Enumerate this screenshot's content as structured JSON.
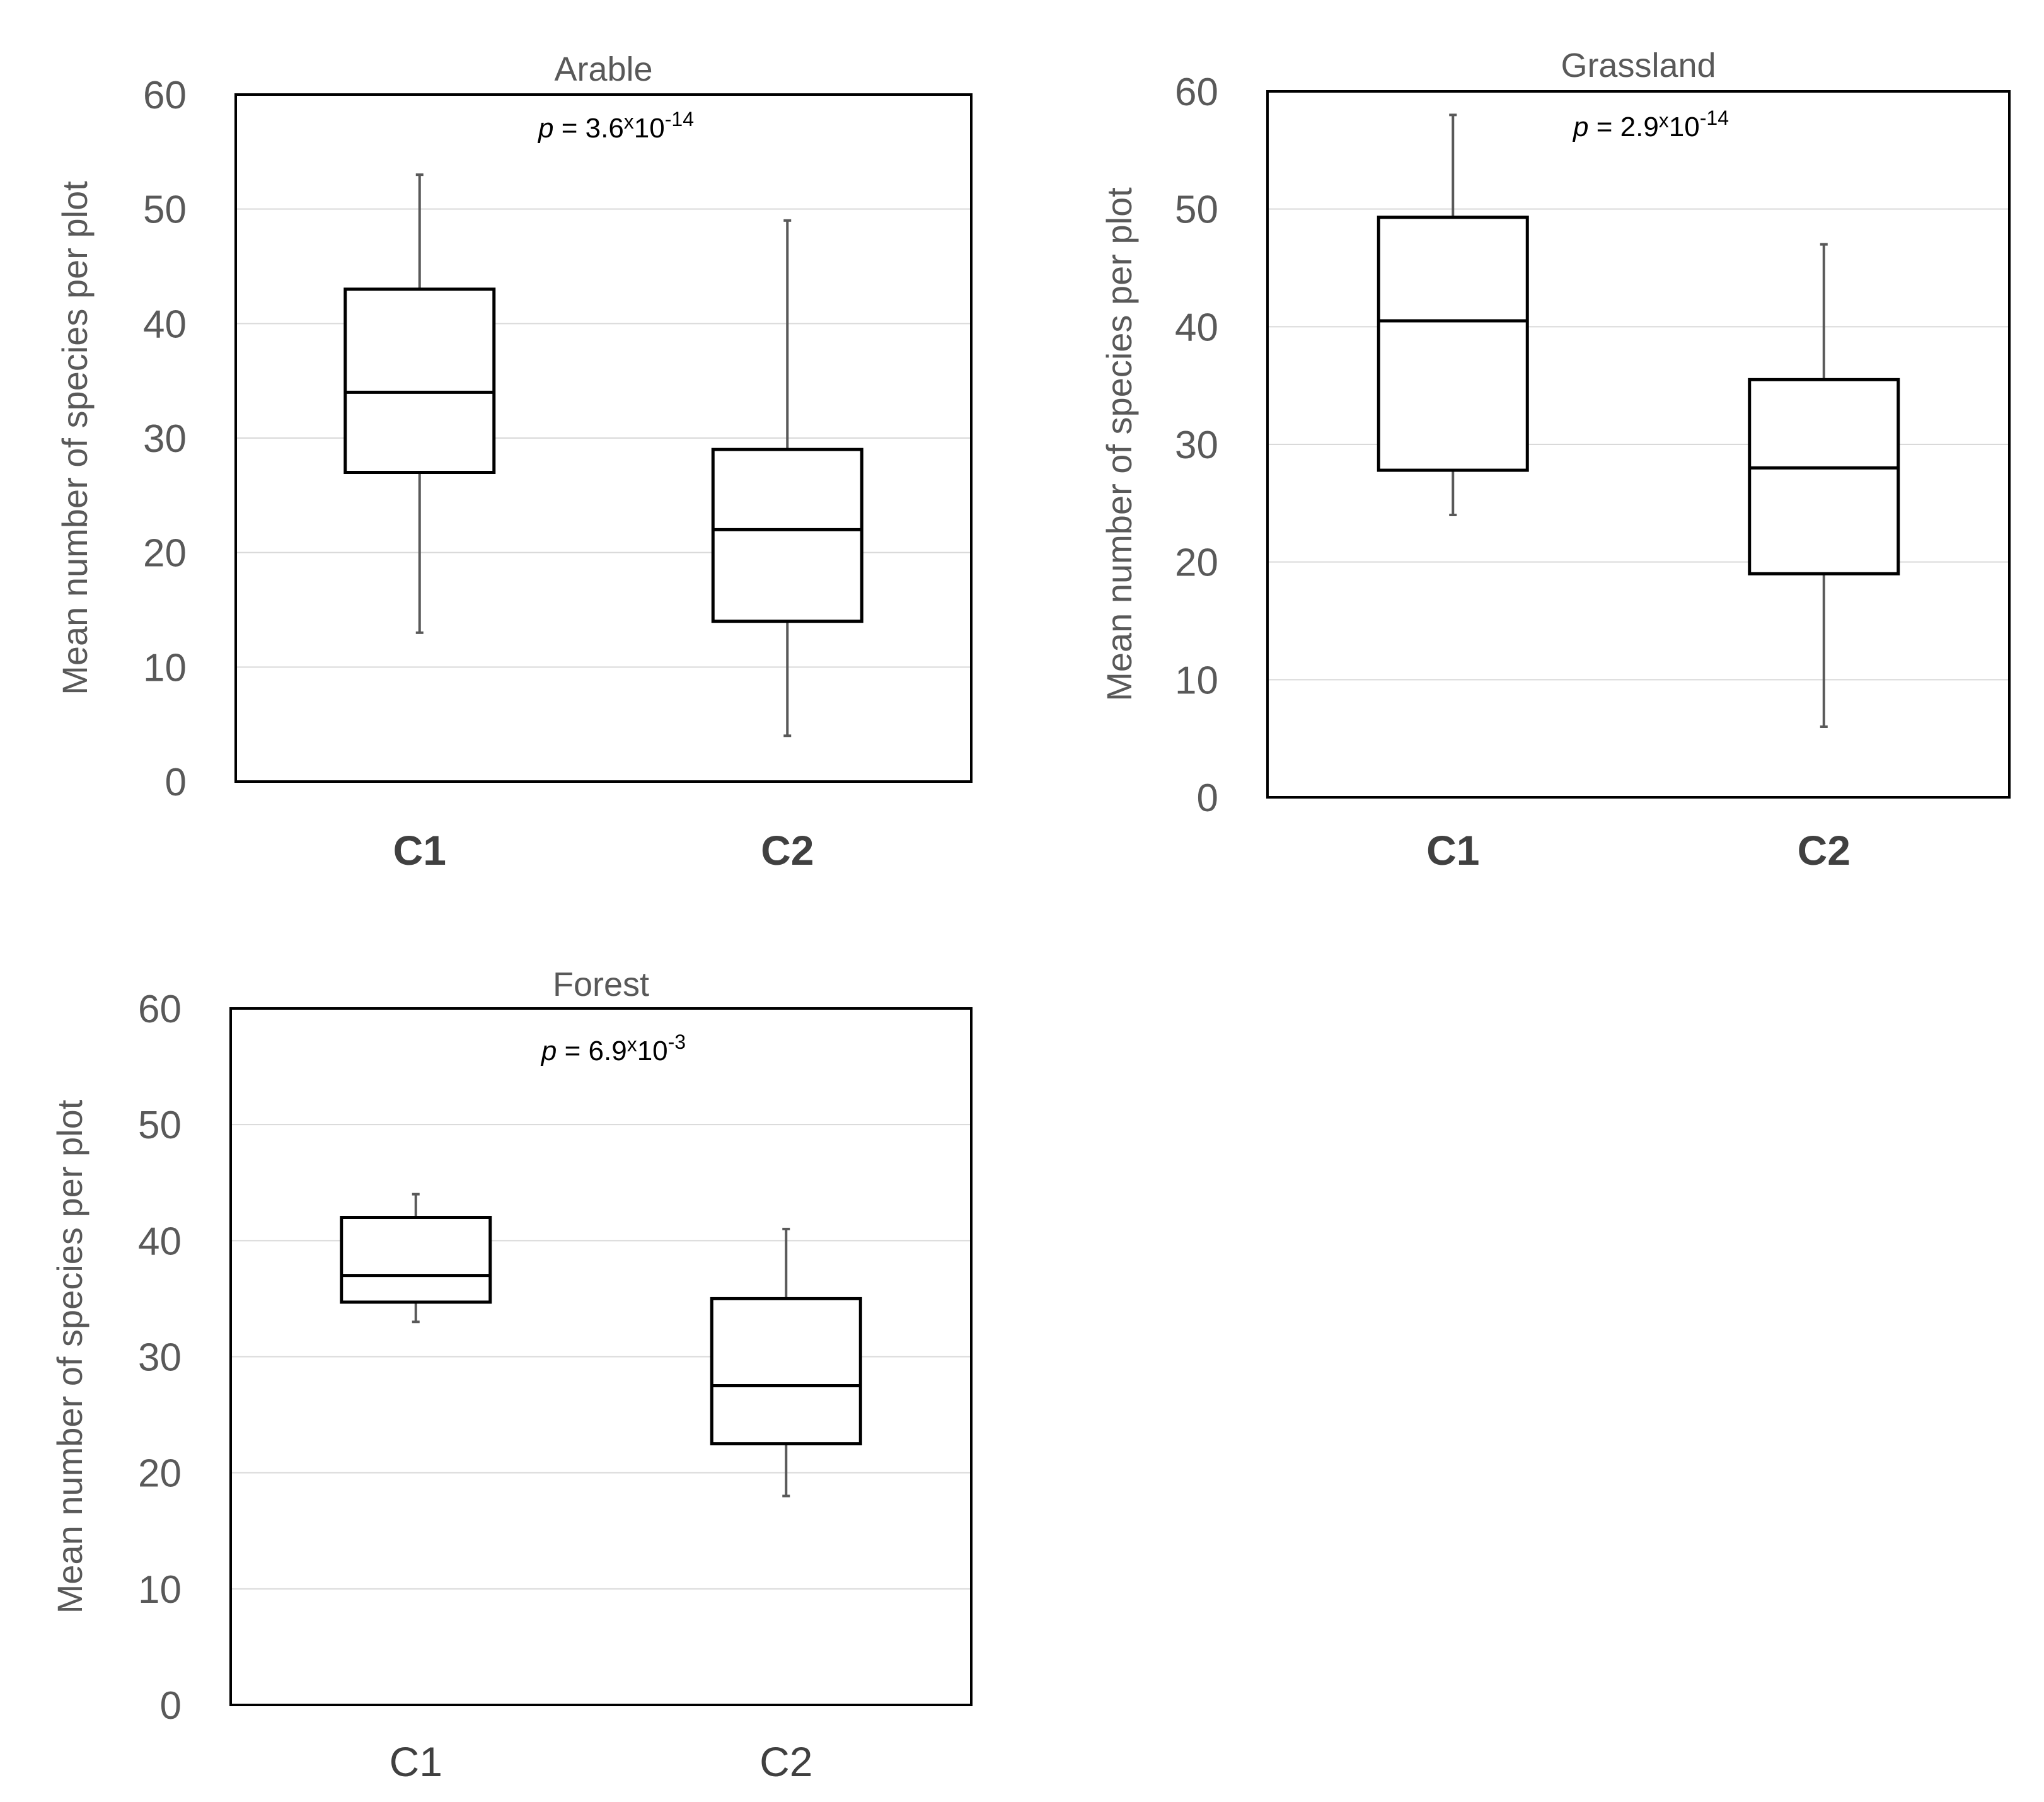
{
  "chart_data": [
    {
      "type": "box",
      "title": "Arable",
      "annotation": {
        "p_label": "p",
        "text": " = 3.6",
        "times": "x",
        "base": "10",
        "exponent": "-14"
      },
      "ylabel": "Mean number of  species per plot",
      "ylim": [
        0,
        60
      ],
      "yticks": [
        0,
        10,
        20,
        30,
        40,
        50,
        60
      ],
      "categories": [
        "C1",
        "C2"
      ],
      "category_bold": true,
      "grid": true,
      "boxes": [
        {
          "category": "C1",
          "min": 13,
          "q1": 27,
          "median": 34,
          "q3": 43,
          "max": 53
        },
        {
          "category": "C2",
          "min": 4,
          "q1": 14,
          "median": 22,
          "q3": 29,
          "max": 49
        }
      ]
    },
    {
      "type": "box",
      "title": "Grassland",
      "annotation": {
        "p_label": "p",
        "text": " = 2.9",
        "times": "x",
        "base": "10",
        "exponent": "-14"
      },
      "ylabel": "Mean number of  species per plot",
      "ylim": [
        0,
        60
      ],
      "yticks": [
        0,
        10,
        20,
        30,
        40,
        50,
        60
      ],
      "categories": [
        "C1",
        "C2"
      ],
      "category_bold": true,
      "grid": true,
      "boxes": [
        {
          "category": "C1",
          "min": 24,
          "q1": 27.8,
          "median": 40.5,
          "q3": 49.3,
          "max": 58
        },
        {
          "category": "C2",
          "min": 6,
          "q1": 19,
          "median": 28,
          "q3": 35.5,
          "max": 47
        }
      ]
    },
    {
      "type": "box",
      "title": "Forest",
      "annotation": {
        "p_label": "p",
        "text": " = 6.9",
        "times": "x",
        "base": "10",
        "exponent": "-3"
      },
      "ylabel": "Mean number of  species per plot",
      "ylim": [
        0,
        60
      ],
      "yticks": [
        0,
        10,
        20,
        30,
        40,
        50,
        60
      ],
      "categories": [
        "C1",
        "C2"
      ],
      "category_bold": false,
      "grid": true,
      "boxes": [
        {
          "category": "C1",
          "min": 33,
          "q1": 34.7,
          "median": 37,
          "q3": 42,
          "max": 44
        },
        {
          "category": "C2",
          "min": 18,
          "q1": 22.5,
          "median": 27.5,
          "q3": 35,
          "max": 41
        }
      ]
    }
  ],
  "colors": {
    "axis": "#000000",
    "grid": "#d9d9d9",
    "whisker": "#595959",
    "box": "#000000",
    "text": "#595959",
    "category": "#404040"
  }
}
